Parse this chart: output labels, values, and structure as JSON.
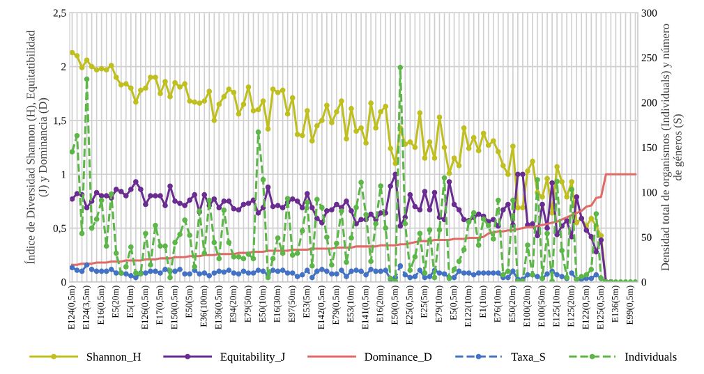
{
  "chart_data": {
    "type": "line",
    "categories": [
      "E124(0,5m)",
      null,
      null,
      "E124(3,5m)",
      null,
      null,
      "E16(0,5m)",
      null,
      null,
      "E5(20m)",
      null,
      null,
      "E5(10m)",
      null,
      null,
      "E126(0,5m)",
      null,
      null,
      "E17(0,5m)",
      null,
      null,
      "E150(0,5m)",
      null,
      null,
      "E50(5m)",
      null,
      null,
      "E36(100m)",
      null,
      null,
      "E136(0,5m)",
      null,
      null,
      "E94(20m)",
      null,
      null,
      "E79(50m)",
      null,
      null,
      "E50(10m)",
      null,
      null,
      "E16(30m)",
      null,
      null,
      "E97(50m)",
      null,
      null,
      "E53(5m)",
      null,
      null,
      "E142(0,5m)",
      null,
      null,
      "E79(0,5m)",
      null,
      null,
      "E53(10m)",
      null,
      null,
      "E141(0,5m)",
      null,
      null,
      "E16(20m)",
      null,
      null,
      "E50(0,5m)",
      null,
      null,
      "E25(0,5m)",
      null,
      null,
      "E25(5m)",
      null,
      null,
      "E79(10m)",
      null,
      null,
      "E5(0,5m)",
      null,
      null,
      "E122(10m)",
      null,
      null,
      "E1(10m)",
      null,
      null,
      "E76(10m)",
      null,
      null,
      "E50(20m)",
      null,
      null,
      "E100(20m)",
      null,
      null,
      "E100(50m)",
      null,
      null,
      "E125(10m)",
      null,
      null,
      "E125(20m)",
      null,
      null,
      "E122(0,5m)",
      null,
      null,
      "E125(0,5m)",
      null,
      null,
      "E136(5m)",
      null,
      null,
      "E99(0,5m)",
      null
    ],
    "ylabel": "Índice de Diversidad Shannon (H), Equitatibilidad\n(J) y Dominancia (D)",
    "y2label": "Densidad total de organismos (Individuals) y número\nde géneros (S)",
    "ylim": [
      0,
      2.5
    ],
    "yticks": [
      0,
      {
        "value": 0.5,
        "label": "0,5"
      },
      1,
      {
        "value": 1.5,
        "label": "1,5"
      },
      2,
      {
        "value": 2.5,
        "label": "2,5"
      }
    ],
    "y2lim": [
      0,
      300
    ],
    "y2ticks": [
      0,
      50,
      100,
      150,
      200,
      250,
      300
    ],
    "grid": true,
    "legend": "bottom",
    "series": [
      {
        "name": "Shannon_H",
        "color": "#bfbf1f",
        "marker": "circle",
        "line_style": "solid",
        "values": [
          2.13,
          2.1,
          1.99,
          2.06,
          2.0,
          1.97,
          1.98,
          1.97,
          2.01,
          1.9,
          1.83,
          1.84,
          1.8,
          1.67,
          1.78,
          1.8,
          1.9,
          1.9,
          1.75,
          1.86,
          1.72,
          1.85,
          1.81,
          1.84,
          1.68,
          1.67,
          1.66,
          1.68,
          1.77,
          1.5,
          1.65,
          1.72,
          1.79,
          1.76,
          1.56,
          1.65,
          1.81,
          1.59,
          1.6,
          1.68,
          1.42,
          1.79,
          1.76,
          1.78,
          1.56,
          1.71,
          1.37,
          1.36,
          1.59,
          1.31,
          1.45,
          1.5,
          1.64,
          1.48,
          1.58,
          1.68,
          1.33,
          1.61,
          1.4,
          1.43,
          1.29,
          1.66,
          1.43,
          1.58,
          1.63,
          1.24,
          1.1,
          1.43,
          1.28,
          1.3,
          1.25,
          1.57,
          1.15,
          1.3,
          1.15,
          1.53,
          1.25,
          1.01,
          1.15,
          1.08,
          1.43,
          1.24,
          1.34,
          1.22,
          1.38,
          1.27,
          1.31,
          1.21,
          1.08,
          1.0,
          1.26,
          0.69,
          0.69,
          1.03,
          1.12,
          0.83,
          0.79,
          0.96,
          0.64,
          1.07,
          0.93,
          0.79,
          0.93,
          0.55,
          0.59,
          0.52,
          0.59,
          0.52,
          0.43,
          0,
          0,
          null,
          null,
          null,
          null,
          null
        ]
      },
      {
        "name": "Equitability_J",
        "color": "#6a2c91",
        "marker": "circle",
        "line_style": "solid",
        "values": [
          0.77,
          0.82,
          0.81,
          0.69,
          0.75,
          0.83,
          0.8,
          0.8,
          0.78,
          0.86,
          0.84,
          0.8,
          0.86,
          0.93,
          0.86,
          0.72,
          0.8,
          0.8,
          0.8,
          0.71,
          0.89,
          0.75,
          0.73,
          0.71,
          0.76,
          0.81,
          0.65,
          0.81,
          0.71,
          0.77,
          0.69,
          0.75,
          0.75,
          0.68,
          0.67,
          0.72,
          0.73,
          0.76,
          0.64,
          0.69,
          0.88,
          0.7,
          0.71,
          0.69,
          0.74,
          0.77,
          0.75,
          0.69,
          0.82,
          0.69,
          0.59,
          0.55,
          0.66,
          0.67,
          0.72,
          0.69,
          0.75,
          0.66,
          0.54,
          0.58,
          0.58,
          0.63,
          0.58,
          0.64,
          0.64,
          0.89,
          1.0,
          0.52,
          0.6,
          0.81,
          0.7,
          0.67,
          0.84,
          0.67,
          0.83,
          0.6,
          0.58,
          0.93,
          0.72,
          0.67,
          0.58,
          0.57,
          0.6,
          0.63,
          0.61,
          0.56,
          0.58,
          0.52,
          0.67,
          0.72,
          0.53,
          1.0,
          1.0,
          0.53,
          0.54,
          0.43,
          0.72,
          0.5,
          0.92,
          0.44,
          0.52,
          0.57,
          0.42,
          0.79,
          0.59,
          0.48,
          0.42,
          0.28,
          0.39,
          0,
          0,
          null,
          null,
          null,
          null,
          null
        ]
      },
      {
        "name": "Dominance_D",
        "color": "#e06a66",
        "marker": "none",
        "line_style": "solid",
        "values": [
          0.16,
          0.16,
          0.17,
          0.17,
          0.17,
          0.18,
          0.18,
          0.18,
          0.19,
          0.19,
          0.19,
          0.2,
          0.2,
          0.2,
          0.2,
          0.21,
          0.21,
          0.21,
          0.22,
          0.22,
          0.22,
          0.23,
          0.23,
          0.23,
          0.24,
          0.24,
          0.24,
          0.25,
          0.25,
          0.25,
          0.26,
          0.26,
          0.26,
          0.26,
          0.27,
          0.27,
          0.27,
          0.28,
          0.28,
          0.28,
          0.29,
          0.29,
          0.29,
          0.29,
          0.29,
          0.3,
          0.3,
          0.3,
          0.3,
          0.31,
          0.31,
          0.31,
          0.31,
          0.31,
          0.32,
          0.32,
          0.32,
          0.32,
          0.33,
          0.33,
          0.33,
          0.33,
          0.33,
          0.34,
          0.34,
          0.34,
          0.34,
          0.35,
          0.35,
          0.36,
          0.37,
          0.38,
          0.38,
          0.38,
          0.39,
          0.39,
          0.39,
          0.39,
          0.4,
          0.4,
          0.4,
          0.41,
          0.41,
          0.41,
          0.42,
          0.45,
          0.46,
          0.47,
          0.47,
          0.48,
          0.48,
          0.49,
          0.5,
          0.51,
          0.51,
          0.52,
          0.53,
          0.54,
          0.55,
          0.56,
          0.58,
          0.6,
          0.62,
          0.64,
          0.66,
          0.7,
          0.71,
          0.78,
          0.79,
          1.0,
          1.0,
          1.0,
          1.0,
          1.0,
          1.0,
          1.0
        ]
      },
      {
        "name": "Taxa_S",
        "color": "#4472c4",
        "marker": "circle",
        "line_style": "dashed",
        "axis": "y2",
        "values": [
          16,
          13,
          12,
          19,
          14,
          12,
          12,
          12,
          14,
          10,
          10,
          9,
          7,
          5,
          10,
          10,
          12,
          12,
          10,
          14,
          12,
          12,
          14,
          9,
          9,
          13,
          9,
          10,
          7,
          10,
          12,
          11,
          13,
          10,
          9,
          12,
          10,
          10,
          13,
          12,
          8,
          13,
          12,
          13,
          10,
          10,
          6,
          8,
          13,
          5,
          12,
          14,
          12,
          9,
          9,
          13,
          6,
          12,
          13,
          12,
          8,
          14,
          12,
          12,
          13,
          3,
          5,
          18,
          8,
          5,
          6,
          13,
          5,
          6,
          13,
          10,
          9,
          5,
          5,
          12,
          10,
          10,
          8,
          10,
          10,
          10,
          10,
          10,
          5,
          5,
          12,
          3,
          3,
          8,
          8,
          6,
          4,
          9,
          12,
          8,
          6,
          4,
          10,
          3,
          3,
          4,
          4,
          8,
          4,
          0,
          0,
          null,
          null,
          null,
          null,
          null
        ]
      },
      {
        "name": "Individuals",
        "color": "#5cb648",
        "marker": "circle",
        "line_style": "dashed",
        "axis": "y2",
        "values": [
          145,
          163,
          54,
          226,
          60,
          70,
          91,
          40,
          98,
          32,
          10,
          17,
          39,
          10,
          9,
          54,
          19,
          63,
          40,
          40,
          5,
          44,
          53,
          69,
          52,
          17,
          79,
          32,
          91,
          44,
          26,
          80,
          44,
          28,
          28,
          26,
          31,
          26,
          167,
          114,
          5,
          26,
          49,
          32,
          93,
          30,
          32,
          57,
          89,
          18,
          92,
          83,
          50,
          19,
          43,
          79,
          22,
          49,
          83,
          111,
          75,
          23,
          65,
          107,
          60,
          4,
          1,
          239,
          65,
          13,
          28,
          54,
          10,
          58,
          5,
          58,
          116,
          4,
          14,
          23,
          36,
          67,
          77,
          41,
          70,
          63,
          48,
          91,
          8,
          12,
          91,
          1,
          1,
          41,
          8,
          114,
          4,
          54,
          1,
          112,
          35,
          5,
          103,
          3,
          6,
          8,
          14,
          76,
          4,
          0,
          0,
          0,
          0,
          0,
          0,
          0
        ]
      }
    ]
  }
}
